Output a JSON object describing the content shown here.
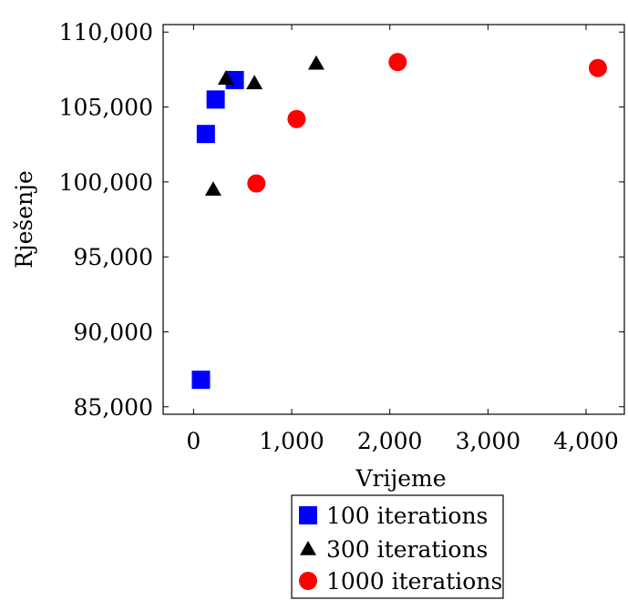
{
  "chart_data": {
    "type": "scatter",
    "xlabel": "Vrijeme",
    "ylabel": "Rješenje",
    "xlim": [
      -310,
      4390
    ],
    "ylim": [
      84500,
      110500
    ],
    "xticks": [
      0,
      1000,
      2000,
      3000,
      4000
    ],
    "xtick_labels": [
      "0",
      "1,000",
      "2,000",
      "3,000",
      "4,000"
    ],
    "yticks": [
      85000,
      90000,
      95000,
      100000,
      105000,
      110000
    ],
    "ytick_labels": [
      "85,000",
      "90,000",
      "95,000",
      "100,000",
      "105,000",
      "110,000"
    ],
    "grid": false,
    "legend_position": "below",
    "series": [
      {
        "name": "100 iterations",
        "marker": "square",
        "color": "#0000ff",
        "points": [
          [
            75,
            86800
          ],
          [
            125,
            103200
          ],
          [
            225,
            105500
          ],
          [
            420,
            106800
          ]
        ]
      },
      {
        "name": "300 iterations",
        "marker": "triangle",
        "color": "#000000",
        "points": [
          [
            200,
            99500
          ],
          [
            330,
            106900
          ],
          [
            620,
            106600
          ],
          [
            1250,
            107900
          ]
        ]
      },
      {
        "name": "1000 iterations",
        "marker": "circle",
        "color": "#ff0000",
        "points": [
          [
            640,
            99900
          ],
          [
            1050,
            104200
          ],
          [
            2080,
            108000
          ],
          [
            4120,
            107600
          ]
        ]
      }
    ]
  }
}
